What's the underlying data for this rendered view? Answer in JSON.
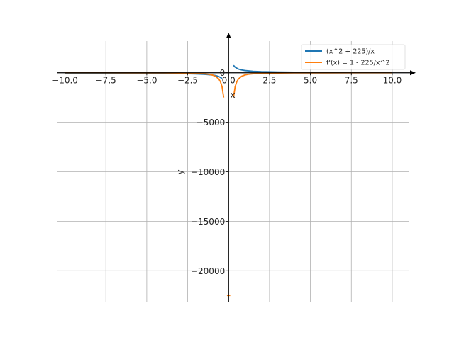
{
  "chart_data": {
    "type": "line",
    "xlabel": "x",
    "ylabel": "y",
    "xlim": [
      -10.5,
      11
    ],
    "ylim": [
      -23200,
      3200
    ],
    "grid": true,
    "legend_position": "top-right",
    "x_ticks": [
      -10.0,
      -7.5,
      -5.0,
      -2.5,
      0.0,
      2.5,
      5.0,
      7.5,
      10.0
    ],
    "x_tick_labels": [
      "−10.0",
      "−7.5",
      "−5.0",
      "−2.5",
      "0.0",
      "2.5",
      "5.0",
      "7.5",
      "10.0"
    ],
    "y_ticks": [
      0,
      -5000,
      -10000,
      -15000,
      -20000
    ],
    "y_tick_labels": [
      "0",
      "−5000",
      "−10000",
      "−15000",
      "−20000"
    ],
    "series": [
      {
        "name": "(x^2 + 225)/x",
        "color": "#1f77b4",
        "segments": [
          [
            [
              -10,
              -32.5
            ],
            [
              -8,
              -36.1
            ],
            [
              -6,
              -43.5
            ],
            [
              -4,
              -60.3
            ],
            [
              -3,
              -78
            ],
            [
              -2,
              -114.5
            ],
            [
              -1.5,
              -151.5
            ],
            [
              -1,
              -226
            ],
            [
              -0.8,
              -282
            ],
            [
              -0.6,
              -375.6
            ],
            [
              -0.4,
              -562.9
            ]
          ],
          [
            [
              0.3,
              750.3
            ],
            [
              0.4,
              562.9
            ],
            [
              0.6,
              375.6
            ],
            [
              0.8,
              282
            ],
            [
              1,
              226
            ],
            [
              1.5,
              151.5
            ],
            [
              2,
              114.5
            ],
            [
              3,
              78
            ],
            [
              4,
              60.3
            ],
            [
              6,
              43.5
            ],
            [
              8,
              36.1
            ],
            [
              10,
              32.5
            ]
          ]
        ]
      },
      {
        "name": "f'(x) = 1 - 225/x^2",
        "color": "#ff7f0e",
        "segments": [
          [
            [
              -10,
              -1.25
            ],
            [
              -8,
              -2.5
            ],
            [
              -6,
              -5.25
            ],
            [
              -4,
              -13.1
            ],
            [
              -3,
              -24
            ],
            [
              -2,
              -55.3
            ],
            [
              -1.5,
              -99
            ],
            [
              -1.2,
              -155
            ],
            [
              -1,
              -224
            ],
            [
              -0.8,
              -350.6
            ],
            [
              -0.6,
              -624
            ],
            [
              -0.5,
              -899
            ],
            [
              -0.4,
              -1405
            ],
            [
              -0.3,
              -2499
            ]
          ],
          [
            [
              0.3,
              -2499
            ],
            [
              0.4,
              -1405
            ],
            [
              0.5,
              -899
            ],
            [
              0.6,
              -624
            ],
            [
              0.8,
              -350.6
            ],
            [
              1,
              -224
            ],
            [
              1.2,
              -155
            ],
            [
              1.5,
              -99
            ],
            [
              2,
              -55.3
            ],
            [
              3,
              -24
            ],
            [
              4,
              -13.1
            ],
            [
              6,
              -5.25
            ],
            [
              8,
              -2.5
            ],
            [
              10,
              -1.25
            ]
          ],
          [
            [
              -0.1,
              -22499
            ],
            [
              0.1,
              -22499
            ]
          ]
        ]
      }
    ]
  }
}
